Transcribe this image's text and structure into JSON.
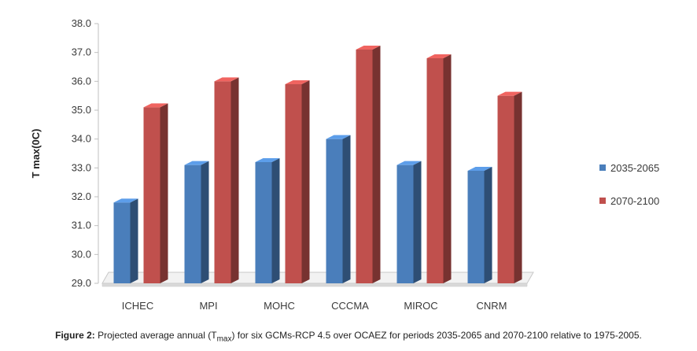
{
  "chart_data": {
    "type": "bar",
    "categories": [
      "ICHEC",
      "MPI",
      "MOHC",
      "CCCMA",
      "MIROC",
      "CNRM"
    ],
    "series": [
      {
        "name": "2035-2065",
        "color": "#4a7ebb",
        "values": [
          31.8,
          33.1,
          33.2,
          34.0,
          33.1,
          32.9
        ]
      },
      {
        "name": "2070-2100",
        "color": "#c0504d",
        "values": [
          35.1,
          36.0,
          35.9,
          37.1,
          36.8,
          35.5
        ]
      }
    ],
    "ylabel": "T max(0C)",
    "ylim": [
      29.0,
      38.0
    ],
    "yticks": [
      "29.0",
      "30.0",
      "31.0",
      "32.0",
      "33.0",
      "34.0",
      "35.0",
      "36.0",
      "37.0",
      "38.0"
    ],
    "legend_position": "right",
    "grid": false
  },
  "caption": {
    "label": "Figure 2:",
    "text_before": " Projected average annual (T",
    "subscript": "max",
    "text_after": ") for six GCMs-RCP 4.5 over OCAEZ for periods 2035-2065 and 2070-2100 relative to 1975-2005."
  }
}
